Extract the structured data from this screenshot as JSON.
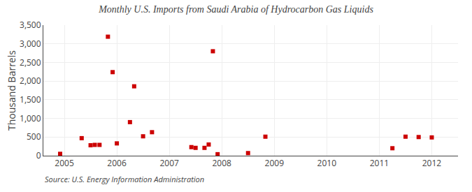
{
  "chart_data": {
    "type": "scatter",
    "title": "Monthly U.S. Imports from Saudi Arabia of Hydrocarbon Gas Liquids",
    "ylabel": "Thousand Barrels",
    "source": "Source: U.S. Energy Information Administration",
    "color": "#cc0000",
    "marker": "square",
    "grid": true,
    "x": [
      2004.92,
      2005.33,
      2005.5,
      2005.58,
      2005.67,
      2005.83,
      2005.92,
      2006.0,
      2006.25,
      2006.33,
      2006.5,
      2006.67,
      2007.42,
      2007.5,
      2007.67,
      2007.75,
      2007.83,
      2007.92,
      2008.5,
      2008.83,
      2011.25,
      2011.5,
      2011.75,
      2012.0
    ],
    "values": [
      50,
      470,
      280,
      290,
      290,
      3190,
      2240,
      330,
      900,
      1860,
      520,
      630,
      230,
      210,
      210,
      300,
      2800,
      40,
      70,
      510,
      200,
      510,
      500,
      490
    ],
    "xlim": [
      2004.6,
      2012.5
    ],
    "xticks": [
      2005,
      2006,
      2007,
      2008,
      2009,
      2010,
      2011,
      2012
    ],
    "ylim": [
      0,
      3500
    ],
    "yticks": [
      0,
      500,
      {
        "value": 1000,
        "label": "1,000"
      },
      {
        "value": 1500,
        "label": "1,500"
      },
      {
        "value": 2000,
        "label": "2,000"
      },
      {
        "value": 2500,
        "label": "2,500"
      },
      {
        "value": 3000,
        "label": "3,000"
      },
      {
        "value": 3500,
        "label": "3,500"
      }
    ]
  }
}
